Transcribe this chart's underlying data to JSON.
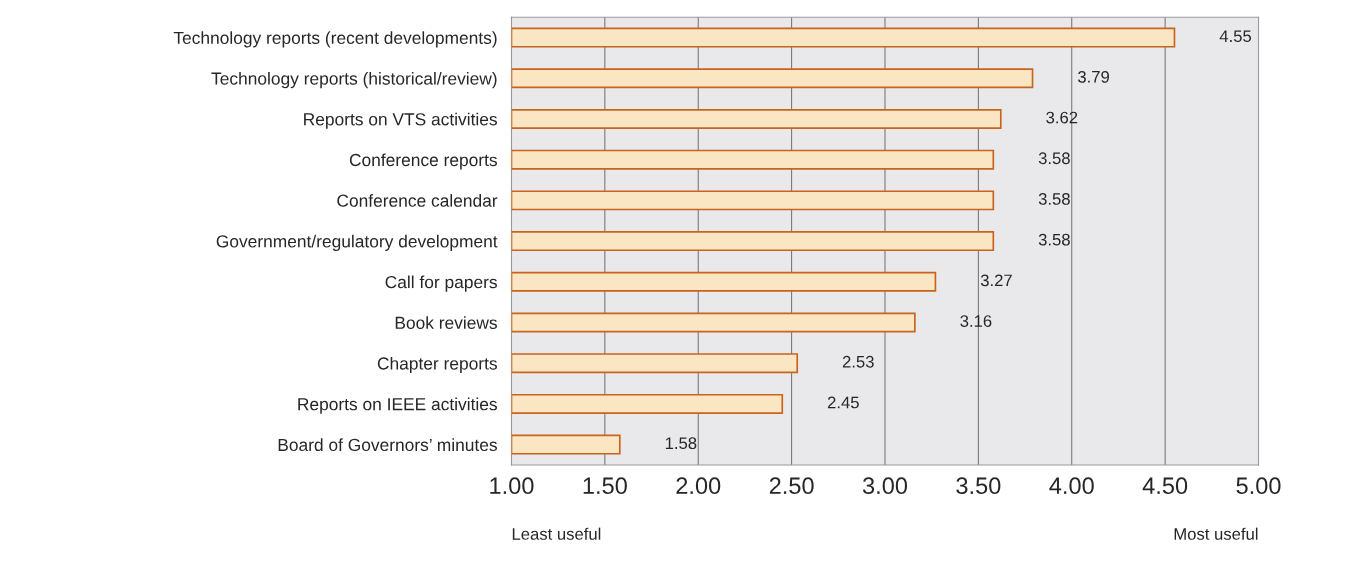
{
  "chart_data": {
    "type": "bar",
    "orientation": "horizontal",
    "categories": [
      "Technology reports (recent developments)",
      "Technology reports (historical/review)",
      "Reports on VTS activities",
      "Conference reports",
      "Conference calendar",
      "Government/regulatory development",
      "Call for papers",
      "Book reviews",
      "Chapter reports",
      "Reports on IEEE activities",
      "Board of Governors’ minutes"
    ],
    "values": [
      4.55,
      3.79,
      3.62,
      3.58,
      3.58,
      3.58,
      3.27,
      3.16,
      2.53,
      2.45,
      1.58
    ],
    "color": "#fae6c3",
    "data_labels": true,
    "xlim": [
      1,
      5
    ],
    "xticks": [
      {
        "value": 1,
        "label": "1.00"
      },
      {
        "value": 1.5,
        "label": "1.50"
      },
      {
        "value": 2,
        "label": "2.00"
      },
      {
        "value": 2.5,
        "label": "2.50"
      },
      {
        "value": 3,
        "label": "3.00"
      },
      {
        "value": 3.5,
        "label": "3.50"
      },
      {
        "value": 4,
        "label": "4.00"
      },
      {
        "value": 4.5,
        "label": "4.50"
      },
      {
        "value": 5,
        "label": "5.00"
      }
    ],
    "grid": "x",
    "annotations": [
      "Least useful",
      "Most useful"
    ]
  }
}
